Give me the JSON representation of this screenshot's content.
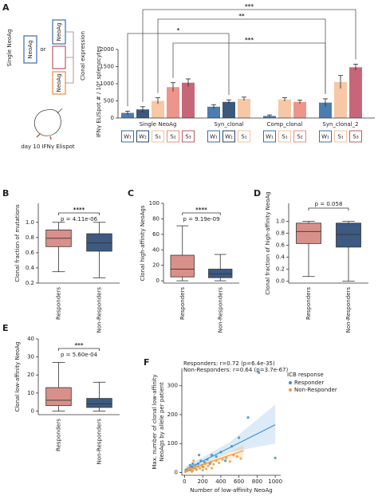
{
  "panels": [
    "A",
    "B",
    "C",
    "D",
    "E",
    "F"
  ],
  "panel_a_diagram": {
    "label": "Single NeoAg",
    "box": "NeoAg",
    "or": "or",
    "clonal": "Clonal expression",
    "readout": "day 10 IFNγ Elispot"
  },
  "chart_data": [
    {
      "type": "bar",
      "ylabel": "IFNγ ELISpot # / 10⁶ splenocytes",
      "ylim": [
        0,
        2000
      ],
      "yticks": [
        0,
        500,
        1000,
        1500,
        2000
      ],
      "colors": {
        "W₁": "#3a6ea5",
        "W₂": "#27466f",
        "S₁": "#f5c29b",
        "S₂": "#eb8a80",
        "S₃": "#c0566a"
      },
      "groups": [
        {
          "name": "Single NeoAg",
          "categories": [
            "W₁",
            "W₂",
            "S₁",
            "S₂",
            "S₃"
          ],
          "values": [
            150,
            250,
            500,
            900,
            1030
          ],
          "errors": [
            50,
            80,
            90,
            130,
            110
          ]
        },
        {
          "name": "Syn_clonal",
          "categories": [
            "W₁",
            "W₂",
            "S₁"
          ],
          "values": [
            330,
            470,
            560
          ],
          "errors": [
            60,
            60,
            50
          ]
        },
        {
          "name": "Comp_clonal",
          "categories": [
            "W₁",
            "S₁",
            "S₂"
          ],
          "values": [
            60,
            540,
            470
          ],
          "errors": [
            30,
            50,
            50
          ]
        },
        {
          "name": "Syn_clonal_2",
          "categories": [
            "W₁",
            "S₁",
            "S₃"
          ],
          "values": [
            450,
            1050,
            1480
          ],
          "errors": [
            110,
            190,
            90
          ]
        }
      ],
      "annotations": [
        "***",
        "**",
        "*",
        "***"
      ]
    },
    {
      "type": "box",
      "ylabel": "Clonal fraction of mutations",
      "ylim": [
        0.2,
        1.25
      ],
      "yticks": [
        0.2,
        0.4,
        0.6,
        0.8,
        {
          "value": 1.0,
          "label": "1.0"
        }
      ],
      "categories": [
        "Responders",
        "Non-Responders"
      ],
      "colors": [
        "#d9908a",
        "#3c5a82"
      ],
      "boxes": [
        {
          "min": 0.35,
          "q1": 0.68,
          "median": 0.79,
          "q3": 0.9,
          "max": 1.0
        },
        {
          "min": 0.27,
          "q1": 0.62,
          "median": 0.73,
          "q3": 0.85,
          "max": 1.0
        }
      ],
      "annotations": [
        "****",
        "p = 4.11e-06"
      ]
    },
    {
      "type": "box",
      "ylabel": "Clonal high-affinity NeoAgs",
      "ylim": [
        -3,
        100
      ],
      "yticks": [
        0,
        20,
        40,
        60,
        80,
        100
      ],
      "categories": [
        "Responders",
        "Non-Responders"
      ],
      "colors": [
        "#d9908a",
        "#3c5a82"
      ],
      "boxes": [
        {
          "min": 0,
          "q1": 5,
          "median": 15,
          "q3": 33,
          "max": 71
        },
        {
          "min": 0,
          "q1": 4,
          "median": 9,
          "q3": 15,
          "max": 34
        }
      ],
      "annotations": [
        "****",
        "p = 9.19e-09"
      ]
    },
    {
      "type": "box",
      "ylabel": "Clonal fraction of high-affinity NeoAg",
      "ylim": [
        -0.03,
        1.3
      ],
      "yticks": [
        {
          "value": 0,
          "label": "0.0"
        },
        0.2,
        0.4,
        0.6,
        0.8,
        {
          "value": 1.0,
          "label": "1.0"
        }
      ],
      "categories": [
        "Responders",
        "Non-Responders"
      ],
      "colors": [
        "#d9908a",
        "#3c5a82"
      ],
      "boxes": [
        {
          "min": 0.08,
          "q1": 0.63,
          "median": 0.83,
          "q3": 0.97,
          "max": 1.0
        },
        {
          "min": 0,
          "q1": 0.57,
          "median": 0.78,
          "q3": 0.97,
          "max": 1.0
        }
      ],
      "annotations": [
        "p = 0.058"
      ]
    },
    {
      "type": "box",
      "ylabel": "Clonal low-affinity NeoAg",
      "ylim": [
        -2,
        40
      ],
      "yticks": [
        0,
        10,
        20,
        30,
        40
      ],
      "categories": [
        "Responders",
        "Non-Responders"
      ],
      "colors": [
        "#d9908a",
        "#3c5a82"
      ],
      "boxes": [
        {
          "min": 0,
          "q1": 3,
          "median": 6,
          "q3": 13,
          "max": 27
        },
        {
          "min": 0,
          "q1": 2,
          "median": 4,
          "q3": 7,
          "max": 16
        }
      ],
      "annotations": [
        "***",
        "p = 5.60e-04"
      ]
    },
    {
      "type": "scatter",
      "xlabel": "Number of low-affinity NeoAg",
      "ylabel": [
        "Max. number of clonal low-affinity",
        "NeoAgs by allele per patient"
      ],
      "xlim": [
        -30,
        1060
      ],
      "ylim": [
        -10,
        360
      ],
      "xticks": [
        0,
        200,
        400,
        600,
        800,
        1000
      ],
      "yticks": [
        0,
        100,
        200,
        300
      ],
      "annotations": [
        "Responders: r=0.72 (p=6.4e-35)",
        "Non-Responders: r=0.64 (p=3.7e-67)"
      ],
      "legend_title": "ICB response",
      "series": [
        {
          "name": "Responder",
          "color": "#3b8fd0",
          "x": [
            20,
            40,
            60,
            80,
            100,
            120,
            150,
            180,
            200,
            220,
            250,
            280,
            300,
            350,
            400,
            450,
            520,
            600,
            700,
            820,
            1000,
            130,
            90,
            60,
            160
          ],
          "y": [
            5,
            10,
            8,
            20,
            15,
            25,
            30,
            40,
            20,
            35,
            45,
            30,
            60,
            55,
            70,
            40,
            90,
            120,
            190,
            345,
            50,
            10,
            30,
            25,
            60
          ],
          "fit_x": [
            0,
            500,
            1000
          ],
          "fit_y": [
            8,
            86,
            165
          ],
          "band_lower": [
            0,
            70,
            100
          ],
          "band_upper": [
            18,
            105,
            235
          ]
        },
        {
          "name": "Non-Responder",
          "color": "#f39a3a",
          "x": [
            10,
            30,
            50,
            70,
            90,
            110,
            130,
            150,
            170,
            190,
            210,
            230,
            260,
            290,
            320,
            350,
            380,
            420,
            460,
            500,
            540,
            580,
            620,
            40,
            80,
            120,
            200,
            240,
            300,
            100
          ],
          "y": [
            2,
            5,
            8,
            12,
            6,
            15,
            10,
            20,
            14,
            25,
            18,
            30,
            22,
            35,
            28,
            40,
            33,
            45,
            50,
            38,
            60,
            55,
            48,
            15,
            3,
            22,
            8,
            12,
            15,
            40
          ],
          "fit_x": [
            0,
            300,
            650
          ],
          "fit_y": [
            4,
            38,
            75
          ],
          "band_lower": [
            0,
            32,
            55
          ],
          "band_upper": [
            10,
            44,
            95
          ]
        }
      ]
    }
  ]
}
